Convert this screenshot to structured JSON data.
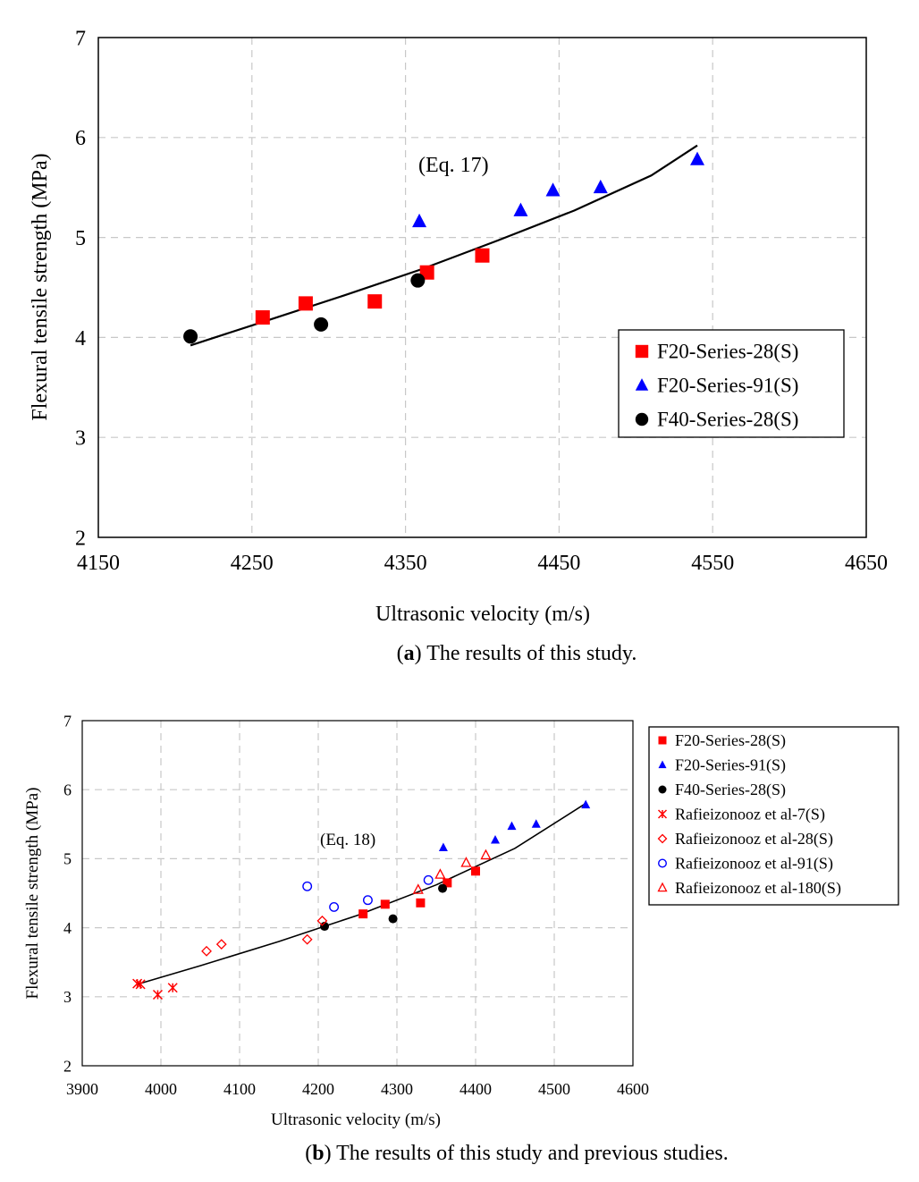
{
  "chart_data": [
    {
      "type": "scatter",
      "title": "",
      "caption_letter": "a",
      "caption_text": ") The results of this study.",
      "xlabel": "Ultrasonic velocity (m/s)",
      "ylabel": "Flexural tensile strength (MPa)",
      "xlim": [
        4150,
        4650
      ],
      "ylim": [
        2,
        7
      ],
      "xticks": [
        4150,
        4250,
        4350,
        4450,
        4550,
        4650
      ],
      "yticks": [
        2,
        3,
        4,
        5,
        6,
        7
      ],
      "grid": true,
      "annotation": "(Eq. 17)",
      "legend_position": "center-right",
      "fit_curve": {
        "x": [
          4210,
          4260,
          4310,
          4360,
          4410,
          4460,
          4510,
          4540
        ],
        "y": [
          3.92,
          4.17,
          4.42,
          4.68,
          4.97,
          5.27,
          5.62,
          5.92
        ]
      },
      "series": [
        {
          "name": "F20-Series-28(S)",
          "marker": "square",
          "color": "#ff0000",
          "x": [
            4257,
            4285,
            4330,
            4364,
            4400
          ],
          "y": [
            4.2,
            4.34,
            4.36,
            4.65,
            4.82
          ]
        },
        {
          "name": "F20-Series-91(S)",
          "marker": "triangle",
          "color": "#0000ff",
          "x": [
            4359,
            4425,
            4446,
            4477,
            4540
          ],
          "y": [
            5.16,
            5.27,
            5.47,
            5.5,
            5.78
          ]
        },
        {
          "name": "F40-Series-28(S)",
          "marker": "circle",
          "color": "#000000",
          "x": [
            4210,
            4295,
            4358
          ],
          "y": [
            4.01,
            4.13,
            4.57
          ]
        }
      ]
    },
    {
      "type": "scatter",
      "title": "",
      "caption_letter": "b",
      "caption_text": ") The results of this study and previous studies.",
      "xlabel": "Ultrasonic velocity (m/s)",
      "ylabel": "Flexural tensile strength (MPa)",
      "xlim": [
        3900,
        4600
      ],
      "ylim": [
        2,
        7
      ],
      "xticks": [
        3900,
        4000,
        4100,
        4200,
        4300,
        4400,
        4500,
        4600
      ],
      "yticks": [
        2,
        3,
        4,
        5,
        6,
        7
      ],
      "grid": true,
      "annotation": "(Eq. 18)",
      "legend_position": "outside-right",
      "fit_curve": {
        "x": [
          3970,
          4050,
          4150,
          4250,
          4350,
          4450,
          4540
        ],
        "y": [
          3.18,
          3.45,
          3.8,
          4.18,
          4.62,
          5.15,
          5.8
        ]
      },
      "series": [
        {
          "name": "F20-Series-28(S)",
          "marker": "square",
          "color": "#ff0000",
          "x": [
            4257,
            4285,
            4330,
            4364,
            4400
          ],
          "y": [
            4.2,
            4.34,
            4.36,
            4.65,
            4.82
          ]
        },
        {
          "name": "F20-Series-91(S)",
          "marker": "triangle",
          "color": "#0000ff",
          "x": [
            4359,
            4425,
            4446,
            4477,
            4540
          ],
          "y": [
            5.16,
            5.27,
            5.47,
            5.5,
            5.78
          ]
        },
        {
          "name": "F40-Series-28(S)",
          "marker": "circle",
          "color": "#000000",
          "x": [
            4208,
            4295,
            4358
          ],
          "y": [
            4.02,
            4.13,
            4.57
          ]
        },
        {
          "name": "Rafieizonooz et al-7(S)",
          "marker": "cross",
          "color": "#ff0000",
          "x": [
            3970,
            3974,
            3996,
            4015
          ],
          "y": [
            3.19,
            3.18,
            3.03,
            3.13
          ]
        },
        {
          "name": "Rafieizonooz et al-28(S)",
          "marker": "diamond-open",
          "color": "#ff0000",
          "x": [
            4058,
            4077,
            4186,
            4205
          ],
          "y": [
            3.66,
            3.76,
            3.83,
            4.1
          ]
        },
        {
          "name": "Rafieizonooz et al-91(S)",
          "marker": "circle-open",
          "color": "#0000ff",
          "x": [
            4186,
            4220,
            4263,
            4340
          ],
          "y": [
            4.6,
            4.3,
            4.4,
            4.69
          ]
        },
        {
          "name": "Rafieizonooz et al-180(S)",
          "marker": "triangle-open",
          "color": "#ff0000",
          "x": [
            4327,
            4355,
            4388,
            4413
          ],
          "y": [
            4.55,
            4.77,
            4.94,
            5.05
          ]
        }
      ]
    }
  ]
}
